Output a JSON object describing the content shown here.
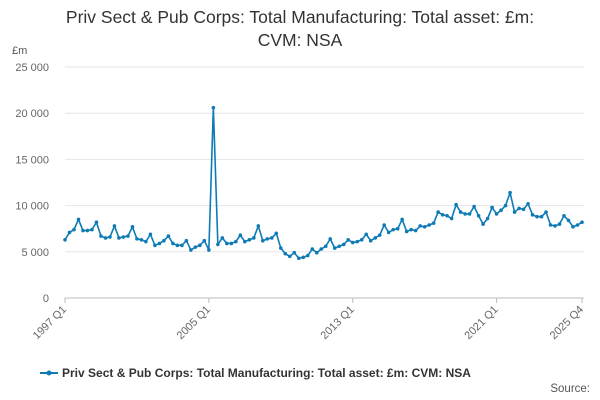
{
  "title_lines": [
    "Priv Sect & Pub Corps: Total Manufacturing: Total asset: £m:",
    "CVM: NSA"
  ],
  "unit_label": "£m",
  "legend_label": "Priv Sect & Pub Corps: Total Manufacturing: Total asset: £m: CVM: NSA",
  "source_label": "Source:",
  "series_color": "#0e7bb5",
  "chart_data": {
    "type": "line",
    "title": "Priv Sect & Pub Corps: Total Manufacturing: Total asset: £m: CVM: NSA",
    "xlabel": "",
    "ylabel": "£m",
    "ylim": [
      0,
      25000
    ],
    "yticks": [
      0,
      5000,
      10000,
      15000,
      20000,
      25000
    ],
    "ytick_labels": [
      "0",
      "5 000",
      "10 000",
      "15 000",
      "20 000",
      "25 000"
    ],
    "xticks": [
      "1997 Q1",
      "2005 Q1",
      "2013 Q1",
      "2021 Q1",
      "2025 Q4"
    ],
    "x_start": "1997 Q1",
    "x_end": "2025 Q4",
    "series": [
      {
        "name": "Priv Sect & Pub Corps: Total Manufacturing: Total asset: £m: CVM: NSA",
        "values": [
          6300,
          7100,
          7400,
          8500,
          7300,
          7300,
          7400,
          8200,
          6700,
          6500,
          6600,
          7800,
          6500,
          6600,
          6700,
          7700,
          6400,
          6300,
          6100,
          6900,
          5700,
          5900,
          6200,
          6700,
          5900,
          5700,
          5700,
          6200,
          5200,
          5500,
          5700,
          6200,
          5200,
          20600,
          5800,
          6500,
          5900,
          5900,
          6100,
          6800,
          6100,
          6300,
          6500,
          7800,
          6200,
          6400,
          6500,
          7000,
          5400,
          4800,
          4500,
          4900,
          4300,
          4400,
          4600,
          5300,
          4900,
          5300,
          5600,
          6400,
          5400,
          5600,
          5800,
          6300,
          6000,
          6100,
          6300,
          6900,
          6200,
          6500,
          6800,
          7900,
          7100,
          7400,
          7500,
          8500,
          7200,
          7400,
          7300,
          7800,
          7700,
          7900,
          8100,
          9300,
          9000,
          8900,
          8600,
          10100,
          9300,
          9100,
          9100,
          9900,
          8900,
          8000,
          8600,
          9800,
          9100,
          9500,
          10000,
          11400,
          9300,
          9700,
          9600,
          10200,
          9000,
          8800,
          8800,
          9300,
          7900,
          7800,
          8000,
          8900,
          8400,
          7700,
          7900,
          8200
        ]
      }
    ]
  }
}
